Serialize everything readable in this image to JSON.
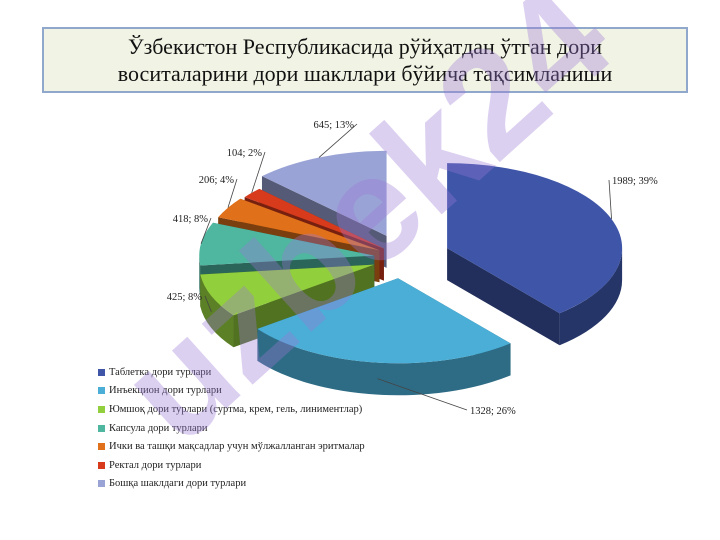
{
  "title": "Ўзбекистон Республикасида рўйҳатдан ўтган дори\nвоситаларини дори шакллари бўйича тақсимланиши",
  "chart_data": {
    "type": "pie",
    "style": "3d-exploded",
    "title": "Ўзбекистон Республикасида рўйҳатдан ўтган дори воситаларини дори шакллари бўйича тақсимланиши",
    "legend_position": "bottom-left",
    "series": [
      {
        "name": "Таблетка дори турлари",
        "value": 1989,
        "percent": 39,
        "label": "1989; 39%",
        "color": "#3e55a8"
      },
      {
        "name": "Инъекцион дори турлари",
        "value": 1328,
        "percent": 26,
        "label": "1328; 26%",
        "color": "#4aaed6"
      },
      {
        "name": "Юмшоқ дори турлари (суртма, крем, гель, линиментлар)",
        "value": 425,
        "percent": 8,
        "label": "425; 8%",
        "color": "#92cf3c"
      },
      {
        "name": "Капсула дори турлари",
        "value": 418,
        "percent": 8,
        "label": "418; 8%",
        "color": "#4fb6a0"
      },
      {
        "name": "Ички ва ташқи мақсадлар учун мўлжалланган эритмалар",
        "value": 206,
        "percent": 4,
        "label": "206; 4%",
        "color": "#e0701a"
      },
      {
        "name": "Ректал дори турлари",
        "value": 104,
        "percent": 2,
        "label": "104; 2%",
        "color": "#d83a1c"
      },
      {
        "name": "Бошқа шаклдаги дори турлари",
        "value": 645,
        "percent": 13,
        "label": "645; 13%",
        "color": "#9aa3d6"
      }
    ]
  },
  "watermark_text": "uzbek24"
}
